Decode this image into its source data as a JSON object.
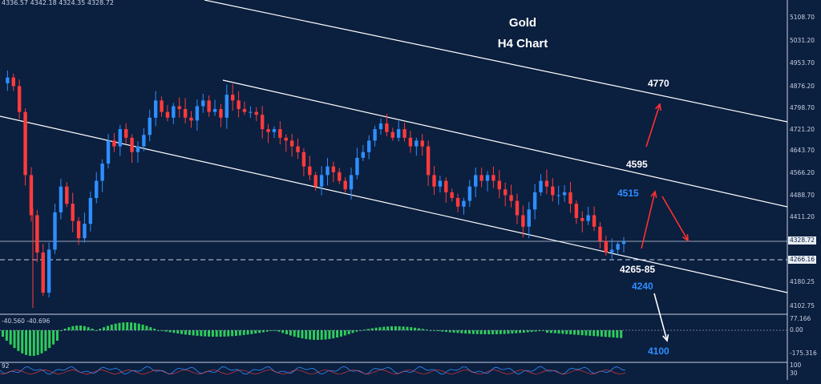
{
  "chart_data": {
    "type": "candlestick",
    "title": "Gold",
    "subtitle": "H4 Chart",
    "ohlc_header": "4336.57 4342.18 4324.35 4328.72",
    "price_axis_ticks": [
      "5108.70",
      "5031.20",
      "4953.70",
      "4876.20",
      "4798.70",
      "4721.20",
      "4643.70",
      "4566.20",
      "4488.70",
      "4411.20",
      "4328.72",
      "4266.16",
      "4180.25",
      "4102.75"
    ],
    "current_price": "4328.72",
    "support_line": "4266.16",
    "ylim": [
      4090,
      5140
    ],
    "annotations": {
      "target_high": "4770",
      "resistance": "4595",
      "level_4515": "4515",
      "support_zone": "4265-85",
      "level_4240": "4240",
      "target_low": "4100"
    },
    "close_path": [
      4880,
      4900,
      4870,
      4780,
      4560,
      4420,
      4290,
      4150,
      4300,
      4430,
      4520,
      4460,
      4400,
      4340,
      4390,
      4480,
      4540,
      4600,
      4680,
      4660,
      4720,
      4690,
      4640,
      4660,
      4700,
      4760,
      4820,
      4780,
      4760,
      4800,
      4790,
      4760,
      4750,
      4800,
      4820,
      4780,
      4790,
      4760,
      4840,
      4820,
      4790,
      4780,
      4780,
      4770,
      4720,
      4710,
      4720,
      4690,
      4680,
      4660,
      4640,
      4590,
      4560,
      4520,
      4560,
      4590,
      4570,
      4540,
      4510,
      4560,
      4620,
      4640,
      4680,
      4720,
      4740,
      4710,
      4690,
      4720,
      4690,
      4660,
      4680,
      4660,
      4560,
      4520,
      4540,
      4500,
      4480,
      4450,
      4470,
      4520,
      4560,
      4540,
      4560,
      4540,
      4510,
      4490,
      4470,
      4420,
      4380,
      4440,
      4500,
      4540,
      4520,
      4490,
      4490,
      4500,
      4460,
      4410,
      4400,
      4420,
      4380,
      4330,
      4290,
      4300,
      4320,
      4328.72
    ],
    "oscillator": {
      "header": "-40.560 -40.696",
      "ticks": [
        "77.166",
        "0.00",
        "-175.316"
      ]
    },
    "lower_panel_ticks": [
      "100",
      "30"
    ],
    "lower_panel_header": "92"
  }
}
